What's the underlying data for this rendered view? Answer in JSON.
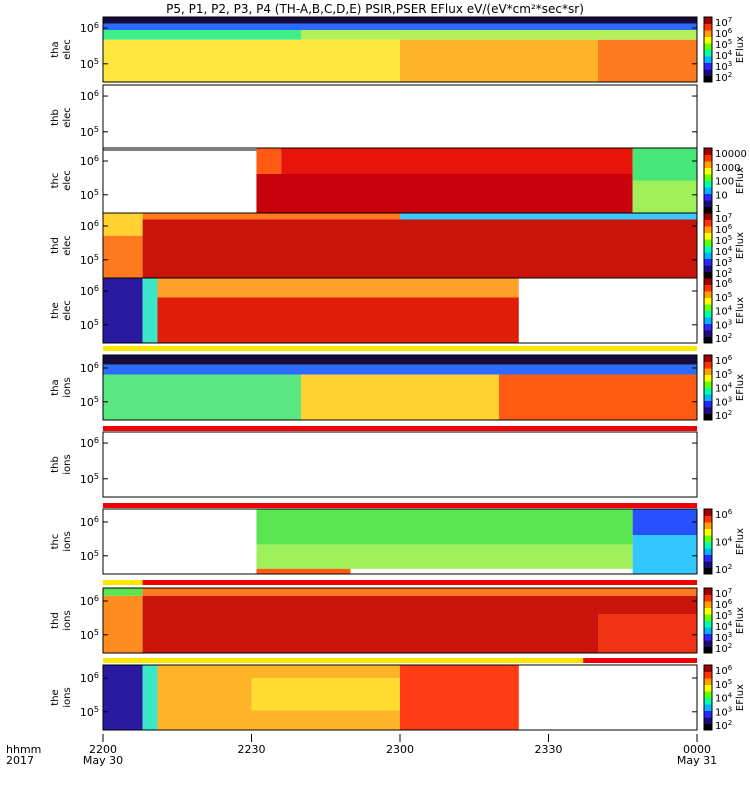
{
  "title": "P5, P1, P2, P3, P4 (TH-A,B,C,D,E) PSIR,PSER EFlux eV/(eV*cm²*sec*sr)",
  "colorbar_label": "EFlux",
  "time_axis": {
    "row1": "hhmm",
    "row2": "2017",
    "ticks": [
      {
        "minutes": 0,
        "label": "2200",
        "date": "May 30"
      },
      {
        "minutes": 30,
        "label": "2230",
        "date": ""
      },
      {
        "minutes": 60,
        "label": "2300",
        "date": ""
      },
      {
        "minutes": 90,
        "label": "2330",
        "date": ""
      },
      {
        "minutes": 120,
        "label": "0000",
        "date": "May 31"
      }
    ],
    "range_minutes": [
      0,
      120
    ]
  },
  "chart_data": [
    {
      "type": "heatmap",
      "probe": "tha",
      "species": "elec",
      "ylabel": [
        "tha",
        "elec"
      ],
      "y_ticks": [
        {
          "exp": "6",
          "frac": 0.17
        },
        {
          "exp": "5",
          "frac": 0.72
        }
      ],
      "colorbar": {
        "min_exp": 2,
        "max_exp": 7,
        "labels": [
          "10^7",
          "10^6",
          "10^5",
          "10^4",
          "10^3",
          "10^2"
        ]
      },
      "regions": [
        {
          "t": [
            0,
            120
          ],
          "y": [
            0,
            0.1
          ],
          "color": "#140a3c"
        },
        {
          "t": [
            0,
            120
          ],
          "y": [
            0.1,
            0.2
          ],
          "color": "#2b6cff"
        },
        {
          "t": [
            0,
            40
          ],
          "y": [
            0.2,
            0.35
          ],
          "color": "#3cf08c"
        },
        {
          "t": [
            40,
            120
          ],
          "y": [
            0.2,
            0.35
          ],
          "color": "#b4f05a"
        },
        {
          "t": [
            0,
            60
          ],
          "y": [
            0.35,
            1
          ],
          "color": "#ffe63c"
        },
        {
          "t": [
            60,
            100
          ],
          "y": [
            0.35,
            1
          ],
          "color": "#ffb428"
        },
        {
          "t": [
            100,
            120
          ],
          "y": [
            0.35,
            1
          ],
          "color": "#ff7a1e"
        }
      ],
      "bar": []
    },
    {
      "type": "heatmap",
      "probe": "thb",
      "species": "elec",
      "ylabel": [
        "thb",
        "elec"
      ],
      "y_ticks": [
        {
          "exp": "6",
          "frac": 0.17
        },
        {
          "exp": "5",
          "frac": 0.72
        }
      ],
      "colorbar": null,
      "regions": [],
      "bar": []
    },
    {
      "type": "heatmap",
      "probe": "thc",
      "species": "elec",
      "ylabel": [
        "thc",
        "elec"
      ],
      "y_ticks": [
        {
          "exp": "6",
          "frac": 0.2
        },
        {
          "exp": "5",
          "frac": 0.72
        }
      ],
      "colorbar": {
        "min_exp": 0,
        "max_exp": 4,
        "labels": [
          "10000",
          "1000",
          "100",
          "10",
          "1"
        ]
      },
      "regions": [
        {
          "t": [
            31,
            36
          ],
          "y": [
            0,
            0.4
          ],
          "color": "#ff5a14"
        },
        {
          "t": [
            36,
            107
          ],
          "y": [
            0,
            0.4
          ],
          "color": "#e8140a"
        },
        {
          "t": [
            31,
            107
          ],
          "y": [
            0.4,
            1
          ],
          "color": "#c8000a"
        },
        {
          "t": [
            107,
            120
          ],
          "y": [
            0,
            0.5
          ],
          "color": "#46e678"
        },
        {
          "t": [
            107,
            120
          ],
          "y": [
            0.5,
            1
          ],
          "color": "#9ff05a"
        }
      ],
      "bar": []
    },
    {
      "type": "heatmap",
      "probe": "thd",
      "species": "elec",
      "ylabel": [
        "thd",
        "elec"
      ],
      "y_ticks": [
        {
          "exp": "6",
          "frac": 0.2
        },
        {
          "exp": "5",
          "frac": 0.72
        }
      ],
      "colorbar": {
        "min_exp": 2,
        "max_exp": 7,
        "labels": [
          "10^7",
          "10^6",
          "10^5",
          "10^4",
          "10^3",
          "10^2"
        ]
      },
      "regions": [
        {
          "t": [
            0,
            8
          ],
          "y": [
            0,
            0.35
          ],
          "color": "#ffd232"
        },
        {
          "t": [
            0,
            8
          ],
          "y": [
            0.35,
            1
          ],
          "color": "#ff7a1e"
        },
        {
          "t": [
            8,
            60
          ],
          "y": [
            0,
            0.1
          ],
          "color": "#ff7a1e"
        },
        {
          "t": [
            60,
            120
          ],
          "y": [
            0,
            0.1
          ],
          "color": "#3cc8ff"
        },
        {
          "t": [
            8,
            120
          ],
          "y": [
            0.1,
            1
          ],
          "color": "#c8140a"
        }
      ],
      "bar": []
    },
    {
      "type": "heatmap",
      "probe": "the",
      "species": "elec",
      "ylabel": [
        "the",
        "elec"
      ],
      "y_ticks": [
        {
          "exp": "6",
          "frac": 0.2
        },
        {
          "exp": "5",
          "frac": 0.72
        }
      ],
      "colorbar": {
        "min_exp": 2,
        "max_exp": 7,
        "labels": [
          "10^6",
          "10^5",
          "10^4",
          "10^3",
          "10^2"
        ]
      },
      "regions": [
        {
          "t": [
            0,
            8
          ],
          "y": [
            0,
            1
          ],
          "color": "#2a1aa0"
        },
        {
          "t": [
            8,
            11
          ],
          "y": [
            0,
            1
          ],
          "color": "#3ce6c8"
        },
        {
          "t": [
            11,
            84
          ],
          "y": [
            0,
            0.3
          ],
          "color": "#ffa02a"
        },
        {
          "t": [
            11,
            84
          ],
          "y": [
            0.3,
            1
          ],
          "color": "#e01e0a"
        }
      ],
      "bar": [
        {
          "t": [
            0,
            120
          ],
          "color": "#ffe600"
        }
      ]
    },
    {
      "type": "heatmap",
      "probe": "tha",
      "species": "ions",
      "ylabel": [
        "tha",
        "ions"
      ],
      "y_ticks": [
        {
          "exp": "6",
          "frac": 0.2
        },
        {
          "exp": "5",
          "frac": 0.72
        }
      ],
      "colorbar": {
        "min_exp": 2,
        "max_exp": 6,
        "labels": [
          "10^6",
          "10^5",
          "10^4",
          "10^3",
          "10^2"
        ]
      },
      "regions": [
        {
          "t": [
            0,
            120
          ],
          "y": [
            0,
            0.15
          ],
          "color": "#140a3c"
        },
        {
          "t": [
            0,
            120
          ],
          "y": [
            0.15,
            0.3
          ],
          "color": "#2b6cff"
        },
        {
          "t": [
            0,
            40
          ],
          "y": [
            0.3,
            1
          ],
          "color": "#5ae680"
        },
        {
          "t": [
            40,
            80
          ],
          "y": [
            0.3,
            1
          ],
          "color": "#ffd232"
        },
        {
          "t": [
            80,
            120
          ],
          "y": [
            0.3,
            1
          ],
          "color": "#ff5a14"
        }
      ],
      "bar": [
        {
          "t": [
            0,
            120
          ],
          "color": "#f00000"
        }
      ]
    },
    {
      "type": "heatmap",
      "probe": "thb",
      "species": "ions",
      "ylabel": [
        "thb",
        "ions"
      ],
      "y_ticks": [
        {
          "exp": "6",
          "frac": 0.17
        },
        {
          "exp": "5",
          "frac": 0.72
        }
      ],
      "colorbar": null,
      "regions": [],
      "bar": [
        {
          "t": [
            0,
            120
          ],
          "color": "#f00000"
        }
      ]
    },
    {
      "type": "heatmap",
      "probe": "thc",
      "species": "ions",
      "ylabel": [
        "thc",
        "ions"
      ],
      "y_ticks": [
        {
          "exp": "6",
          "frac": 0.2
        },
        {
          "exp": "5",
          "frac": 0.72
        }
      ],
      "colorbar": {
        "min_exp": 2,
        "max_exp": 6,
        "labels": [
          "10^6",
          "10^4",
          "10^2"
        ]
      },
      "regions": [
        {
          "t": [
            31,
            107
          ],
          "y": [
            0,
            0.55
          ],
          "color": "#5ae650"
        },
        {
          "t": [
            31,
            107
          ],
          "y": [
            0.55,
            0.92
          ],
          "color": "#9ff05a"
        },
        {
          "t": [
            31,
            50
          ],
          "y": [
            0.92,
            1
          ],
          "color": "#ff5a14"
        },
        {
          "t": [
            107,
            120
          ],
          "y": [
            0,
            0.4
          ],
          "color": "#2850ff"
        },
        {
          "t": [
            107,
            120
          ],
          "y": [
            0.4,
            1
          ],
          "color": "#32c8ff"
        }
      ],
      "bar": [
        {
          "t": [
            0,
            8
          ],
          "color": "#ffe600"
        },
        {
          "t": [
            8,
            120
          ],
          "color": "#f00000"
        }
      ]
    },
    {
      "type": "heatmap",
      "probe": "thd",
      "species": "ions",
      "ylabel": [
        "thd",
        "ions"
      ],
      "y_ticks": [
        {
          "exp": "6",
          "frac": 0.2
        },
        {
          "exp": "5",
          "frac": 0.72
        }
      ],
      "colorbar": {
        "min_exp": 2,
        "max_exp": 7,
        "labels": [
          "10^7",
          "10^6",
          "10^5",
          "10^4",
          "10^3",
          "10^2"
        ]
      },
      "regions": [
        {
          "t": [
            0,
            8
          ],
          "y": [
            0,
            0.12
          ],
          "color": "#5ae650"
        },
        {
          "t": [
            0,
            8
          ],
          "y": [
            0.12,
            1
          ],
          "color": "#ff8c1e"
        },
        {
          "t": [
            8,
            120
          ],
          "y": [
            0,
            0.12
          ],
          "color": "#ff7a1e"
        },
        {
          "t": [
            8,
            120
          ],
          "y": [
            0.12,
            1
          ],
          "color": "#c8140a"
        },
        {
          "t": [
            100,
            120
          ],
          "y": [
            0.4,
            1
          ],
          "color": "#f03214"
        }
      ],
      "bar": [
        {
          "t": [
            0,
            97
          ],
          "color": "#ffe600"
        },
        {
          "t": [
            97,
            120
          ],
          "color": "#f00000"
        }
      ]
    },
    {
      "type": "heatmap",
      "probe": "the",
      "species": "ions",
      "ylabel": [
        "the",
        "ions"
      ],
      "y_ticks": [
        {
          "exp": "6",
          "frac": 0.2
        },
        {
          "exp": "5",
          "frac": 0.72
        }
      ],
      "colorbar": {
        "min_exp": 2,
        "max_exp": 6,
        "labels": [
          "10^6",
          "10^5",
          "10^4",
          "10^3",
          "10^2"
        ]
      },
      "regions": [
        {
          "t": [
            0,
            8
          ],
          "y": [
            0,
            1
          ],
          "color": "#2a1aa0"
        },
        {
          "t": [
            8,
            11
          ],
          "y": [
            0,
            1
          ],
          "color": "#3ce6c8"
        },
        {
          "t": [
            11,
            84
          ],
          "y": [
            0,
            1
          ],
          "color": "#ffb428"
        },
        {
          "t": [
            30,
            70
          ],
          "y": [
            0.2,
            0.7
          ],
          "color": "#ffdc32"
        },
        {
          "t": [
            60,
            84
          ],
          "y": [
            0,
            1
          ],
          "color": "#ff3c14"
        }
      ],
      "bar": []
    }
  ]
}
